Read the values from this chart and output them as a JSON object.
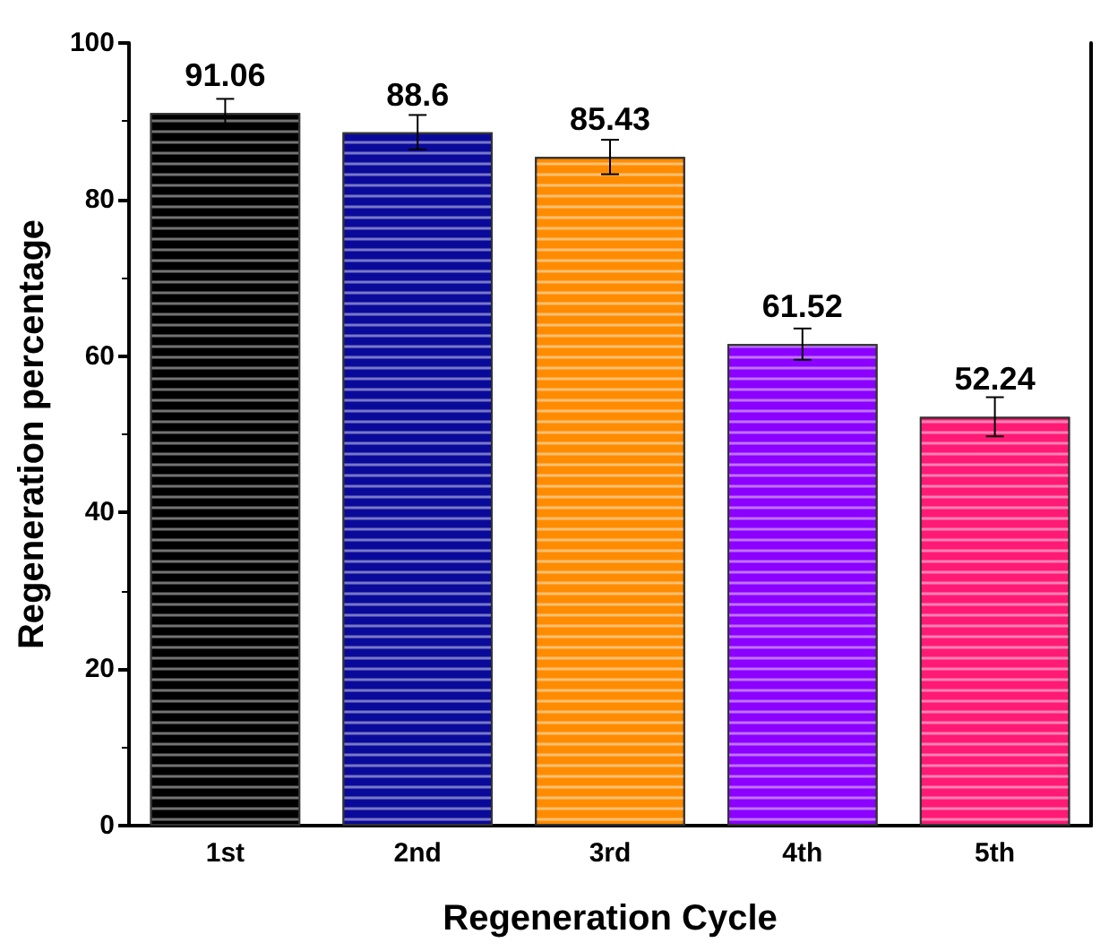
{
  "chart_data": {
    "type": "bar",
    "xlabel": "Regeneration Cycle",
    "ylabel": "Regeneration percentage",
    "categories": [
      "1st",
      "2nd",
      "3rd",
      "4th",
      "5th"
    ],
    "values": [
      91.06,
      88.6,
      85.43,
      61.52,
      52.24
    ],
    "colors": [
      "#000000",
      "#0a0a9a",
      "#ff8c00",
      "#8b00ff",
      "#ff1a75"
    ],
    "errors": [
      1.8,
      2.2,
      2.2,
      2.0,
      2.5
    ],
    "ylim": [
      0,
      100
    ],
    "yticks": [
      0,
      20,
      40,
      60,
      80,
      100
    ],
    "grid": false,
    "data_labels": true
  }
}
